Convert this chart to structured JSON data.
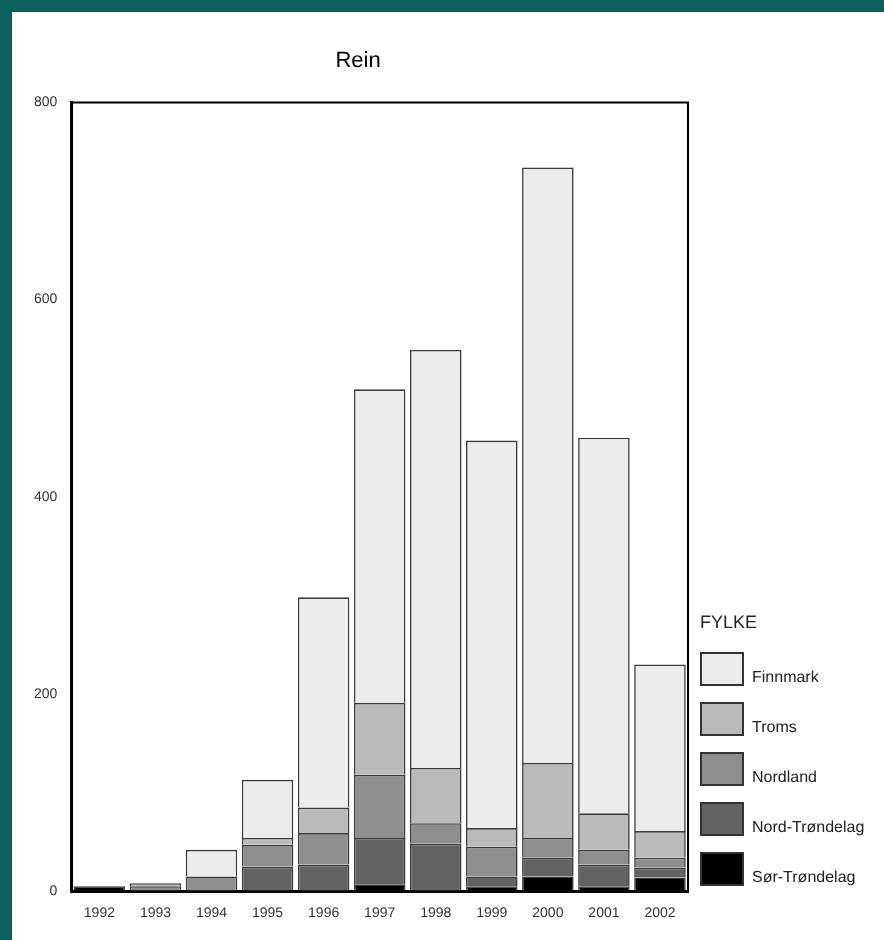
{
  "chart_data": {
    "type": "bar",
    "title": "Rein",
    "legend_title": "FYLKE",
    "stacked": true,
    "legend": "right",
    "grid": false,
    "categories": [
      "1992",
      "1993",
      "1994",
      "1995",
      "1996",
      "1997",
      "1998",
      "1999",
      "2000",
      "2001",
      "2002"
    ],
    "ylim": [
      0,
      800
    ],
    "yticks": [
      0,
      200,
      400,
      600,
      800
    ],
    "series": [
      {
        "name": "Sør-Trøndelag",
        "color": "#000000",
        "values": [
          5,
          null,
          0,
          0,
          null,
          7,
          null,
          5,
          15,
          5,
          14
        ]
      },
      {
        "name": "Nord-Trøndelag",
        "color": "#626262",
        "values": [
          0,
          null,
          null,
          25,
          27,
          47,
          48,
          10,
          19,
          22,
          10
        ]
      },
      {
        "name": "Nordland",
        "color": "#8e8e8e",
        "values": [
          0,
          5,
          15,
          22,
          32,
          64,
          21,
          30,
          20,
          15,
          10
        ]
      },
      {
        "name": "Troms",
        "color": "#bababa",
        "values": [
          0,
          3,
          0,
          7,
          26,
          73,
          56,
          19,
          76,
          37,
          27
        ]
      },
      {
        "name": "Finnmark",
        "color": "#ececec",
        "values": [
          0,
          0,
          27,
          59,
          213,
          318,
          424,
          393,
          604,
          381,
          169
        ]
      }
    ]
  }
}
